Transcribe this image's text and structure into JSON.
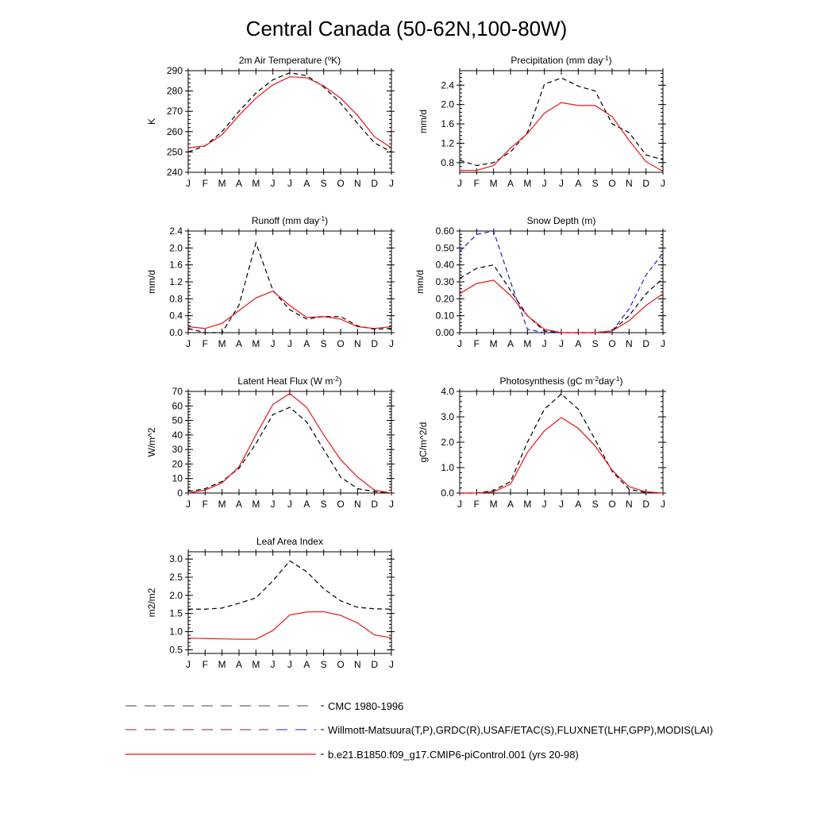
{
  "title": "Central Canada (50-62N,100-80W)",
  "months": [
    "J",
    "F",
    "M",
    "A",
    "M",
    "J",
    "J",
    "A",
    "S",
    "O",
    "N",
    "D",
    "J"
  ],
  "colors": {
    "model": "#e8151b",
    "obs": "#000000",
    "alt_obs": "#1e1ee0"
  },
  "chart_data": [
    {
      "type": "line",
      "title": "2m Air Temperature (",
      "title_sup": "o",
      "title_after": "K)",
      "ylabel": "K",
      "ylim": [
        240,
        290
      ],
      "yticks": [
        240,
        250,
        260,
        270,
        280,
        290
      ],
      "ytick_labels": [
        "240",
        "250",
        "260",
        "270",
        "280",
        "290"
      ],
      "series": [
        {
          "role": "obs",
          "values": [
            250,
            253,
            260,
            270,
            279,
            285.5,
            289,
            287.5,
            282,
            274,
            264,
            254.5,
            250
          ]
        },
        {
          "role": "model",
          "values": [
            252,
            253,
            258.5,
            268,
            276.5,
            283,
            287,
            286.5,
            282.5,
            276.5,
            268,
            257.5,
            252
          ]
        }
      ]
    },
    {
      "type": "line",
      "title": "Precipitation (mm day",
      "title_sup": "-1",
      "title_after": ")",
      "ylabel": "mm/d",
      "ylim": [
        0.6,
        2.7
      ],
      "yticks": [
        0.8,
        1.2,
        1.6,
        2.0,
        2.4
      ],
      "ytick_labels": [
        "0.8",
        "1.2",
        "1.6",
        "2.0",
        "2.4"
      ],
      "series": [
        {
          "role": "obs",
          "values": [
            0.85,
            0.74,
            0.8,
            1.02,
            1.42,
            2.42,
            2.55,
            2.38,
            2.28,
            1.6,
            1.42,
            0.96,
            0.86
          ]
        },
        {
          "role": "model",
          "values": [
            0.64,
            0.64,
            0.74,
            1.1,
            1.4,
            1.82,
            2.04,
            1.98,
            1.98,
            1.75,
            1.26,
            0.82,
            0.62
          ]
        }
      ]
    },
    {
      "type": "line",
      "title": "Runoff (mm day",
      "title_sup": "-1",
      "title_after": ")",
      "ylabel": "mm/d",
      "ylim": [
        0,
        2.4
      ],
      "yticks": [
        0.0,
        0.4,
        0.8,
        1.2,
        1.6,
        2.0,
        2.4
      ],
      "ytick_labels": [
        "0.0",
        "0.4",
        "0.8",
        "1.2",
        "1.6",
        "2.0",
        "2.4"
      ],
      "series": [
        {
          "role": "obs",
          "values": [
            0.1,
            0.0,
            0.0,
            0.65,
            2.12,
            1.0,
            0.54,
            0.32,
            0.38,
            0.38,
            0.16,
            0.08,
            0.1
          ]
        },
        {
          "role": "model",
          "values": [
            0.14,
            0.1,
            0.22,
            0.52,
            0.82,
            0.98,
            0.64,
            0.36,
            0.38,
            0.32,
            0.14,
            0.1,
            0.14
          ]
        }
      ]
    },
    {
      "type": "line",
      "title": "Snow Depth (m)",
      "title_sup": "",
      "title_after": "",
      "ylabel": "mm/d",
      "ylim": [
        0,
        0.6
      ],
      "yticks": [
        0.0,
        0.1,
        0.2,
        0.3,
        0.4,
        0.5,
        0.6
      ],
      "ytick_labels": [
        "0.00",
        "0.10",
        "0.20",
        "0.30",
        "0.40",
        "0.50",
        "0.60"
      ],
      "series": [
        {
          "role": "alt_obs",
          "values": [
            0.48,
            0.58,
            0.6,
            0.3,
            0.02,
            0.0,
            0.0,
            0.0,
            0.0,
            0.01,
            0.14,
            0.34,
            0.47
          ]
        },
        {
          "role": "obs",
          "values": [
            0.32,
            0.38,
            0.4,
            0.25,
            0.1,
            0.01,
            0.0,
            0.0,
            0.0,
            0.01,
            0.1,
            0.23,
            0.32
          ]
        },
        {
          "role": "model",
          "values": [
            0.23,
            0.29,
            0.31,
            0.22,
            0.1,
            0.02,
            0.0,
            0.0,
            0.0,
            0.01,
            0.07,
            0.16,
            0.23
          ]
        }
      ]
    },
    {
      "type": "line",
      "title": "Latent Heat Flux (W m",
      "title_sup": "-2",
      "title_after": ")",
      "ylabel": "W/m^2",
      "ylim": [
        0,
        70
      ],
      "yticks": [
        0,
        10,
        20,
        30,
        40,
        50,
        60,
        70
      ],
      "ytick_labels": [
        "0",
        "10",
        "20",
        "30",
        "40",
        "50",
        "60",
        "70"
      ],
      "series": [
        {
          "role": "obs",
          "values": [
            1,
            3,
            8,
            17,
            34,
            54,
            59,
            49,
            30,
            11,
            3,
            1,
            0
          ]
        },
        {
          "role": "model",
          "values": [
            0,
            2,
            7,
            18,
            40,
            61,
            68.5,
            59,
            40,
            23,
            11,
            2,
            0
          ]
        }
      ]
    },
    {
      "type": "line",
      "title": "Photosynthesis (gC m",
      "title_sup": "-2",
      "title_after": "day",
      "title_sup2": "-1",
      "title_end": ")",
      "ylabel": "gC/m^2/d",
      "ylim": [
        0,
        4
      ],
      "yticks": [
        0,
        1,
        2,
        3,
        4
      ],
      "ytick_labels": [
        "0.0",
        "1.0",
        "2.0",
        "3.0",
        "4.0"
      ],
      "series": [
        {
          "role": "obs",
          "values": [
            0,
            0,
            0.1,
            0.45,
            2.0,
            3.3,
            3.9,
            3.3,
            2.1,
            0.85,
            0.15,
            0.02,
            0
          ]
        },
        {
          "role": "model",
          "values": [
            0,
            0,
            0.05,
            0.35,
            1.6,
            2.45,
            2.97,
            2.55,
            1.85,
            0.9,
            0.25,
            0.05,
            0
          ]
        }
      ]
    },
    {
      "type": "line",
      "title": "Leaf Area Index",
      "title_sup": "",
      "title_after": "",
      "ylabel": "m2/m2",
      "ylim": [
        0.4,
        3.2
      ],
      "yticks": [
        0.5,
        1.0,
        1.5,
        2.0,
        2.5,
        3.0
      ],
      "ytick_labels": [
        "0.5",
        "1.0",
        "1.5",
        "2.0",
        "2.5",
        "3.0"
      ],
      "series": [
        {
          "role": "obs",
          "values": [
            1.62,
            1.62,
            1.65,
            1.78,
            1.93,
            2.4,
            2.95,
            2.65,
            2.18,
            1.85,
            1.67,
            1.63,
            1.62
          ]
        },
        {
          "role": "model",
          "values": [
            0.82,
            0.81,
            0.8,
            0.79,
            0.79,
            1.03,
            1.46,
            1.54,
            1.55,
            1.45,
            1.24,
            0.91,
            0.83
          ]
        }
      ]
    }
  ],
  "legend": [
    {
      "label": "CMC 1980-1996",
      "style": "obs-dash"
    },
    {
      "label": "Willmott-Matsuura(T,P),GRDC(R),USAF/ETAC(S),FLUXNET(LHF,GPP),MODIS(LAI)",
      "style": "multi-dash"
    },
    {
      "label": "b.e21.B1850.f09_g17.CMIP6-piControl.001 (yrs 20-98)",
      "style": "model-solid"
    }
  ]
}
